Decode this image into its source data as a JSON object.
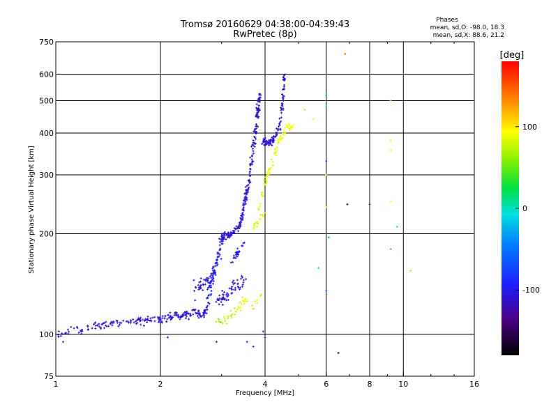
{
  "chart_data": {
    "type": "scatter",
    "title": "Tromsø 20160629 04:38:00-04:39:43",
    "subtitle": "RwPretec (8p)",
    "xlabel": "Frequency [MHz]",
    "ylabel": "Stationary phase Virtual Height [km]",
    "x_scale": "log",
    "y_scale": "log",
    "xlim": [
      1,
      16
    ],
    "ylim": [
      75,
      750
    ],
    "x_ticks": [
      1,
      2,
      4,
      6,
      8,
      10,
      16
    ],
    "x_tick_labels": [
      "1",
      "2",
      "4",
      "6",
      "8",
      "10",
      "16"
    ],
    "y_ticks": [
      75,
      100,
      200,
      300,
      400,
      500,
      600,
      750
    ],
    "y_tick_labels": [
      "75",
      "100",
      "200",
      "300",
      "400",
      "500",
      "600",
      "750"
    ],
    "grid": true,
    "stats": {
      "heading": "Phases",
      "line_o": "mean, sd,O: -98.0, 18.3",
      "line_x": "mean, sd,X: 88.6, 21.2"
    },
    "colorbar": {
      "label": "[deg]",
      "min": -180,
      "max": 180,
      "ticks": [
        100,
        0,
        -100
      ],
      "tick_labels": [
        "100",
        "0",
        "-100"
      ]
    },
    "trace_segments": [
      {
        "name": "base",
        "points": [
          [
            1.02,
            100,
            -110
          ],
          [
            1.1,
            104,
            -112
          ],
          [
            1.2,
            103,
            -108
          ],
          [
            1.3,
            106,
            -110
          ],
          [
            1.4,
            107,
            -112
          ],
          [
            1.5,
            108,
            -110
          ],
          [
            1.6,
            109,
            -114
          ],
          [
            1.7,
            109,
            -108
          ],
          [
            1.8,
            110,
            -110
          ],
          [
            1.9,
            111,
            -112
          ],
          [
            2.0,
            111,
            -106
          ],
          [
            2.1,
            112,
            -110
          ],
          [
            2.2,
            114,
            -108
          ],
          [
            2.3,
            114,
            -112
          ],
          [
            2.4,
            115,
            -110
          ],
          [
            2.5,
            116,
            -108
          ],
          [
            2.6,
            115,
            -110
          ],
          [
            2.7,
            116,
            -112
          ]
        ],
        "spread": 0.04,
        "count": 210
      },
      {
        "name": "o-rise",
        "points": [
          [
            2.7,
            116,
            -105
          ],
          [
            2.75,
            130,
            -100
          ],
          [
            2.8,
            145,
            -95
          ],
          [
            2.9,
            165,
            -100
          ],
          [
            3.0,
            190,
            -105
          ],
          [
            3.05,
            200,
            -110
          ]
        ],
        "spread": 0.06,
        "count": 95
      },
      {
        "name": "o-dip",
        "points": [
          [
            3.05,
            200,
            -110
          ],
          [
            3.15,
            198,
            -112
          ],
          [
            3.3,
            205,
            -110
          ],
          [
            3.4,
            215,
            -108
          ]
        ],
        "spread": 0.03,
        "count": 55
      },
      {
        "name": "o-cusp",
        "points": [
          [
            3.4,
            215,
            -108
          ],
          [
            3.5,
            245,
            -110
          ],
          [
            3.6,
            290,
            -112
          ],
          [
            3.7,
            360,
            -115
          ],
          [
            3.8,
            450,
            -115
          ],
          [
            3.87,
            520,
            -115
          ]
        ],
        "spread": 0.045,
        "count": 150
      },
      {
        "name": "x-mid",
        "points": [
          [
            3.95,
            380,
            -112
          ],
          [
            4.1,
            372,
            -110
          ],
          [
            4.25,
            385,
            -112
          ],
          [
            4.4,
            420,
            -115
          ],
          [
            4.5,
            500,
            -115
          ],
          [
            4.55,
            620,
            -112
          ]
        ],
        "spread": 0.035,
        "count": 110
      },
      {
        "name": "x-lower",
        "points": [
          [
            2.9,
            125,
            -110
          ],
          [
            3.1,
            132,
            -108
          ],
          [
            3.3,
            140,
            -110
          ],
          [
            3.5,
            145,
            -110
          ]
        ],
        "spread": 0.07,
        "count": 60
      },
      {
        "name": "o-lower",
        "points": [
          [
            2.5,
            135,
            -105
          ],
          [
            2.7,
            145,
            -110
          ],
          [
            2.9,
            150,
            -108
          ]
        ],
        "spread": 0.09,
        "count": 45
      },
      {
        "name": "high-cusp",
        "points": [
          [
            3.2,
            165,
            -100
          ],
          [
            3.35,
            175,
            -100
          ],
          [
            3.5,
            190,
            -108
          ]
        ],
        "spread": 0.05,
        "count": 25
      },
      {
        "name": "ext-trace",
        "points": [
          [
            3.8,
            230,
            80
          ],
          [
            4.0,
            285,
            85
          ],
          [
            4.2,
            330,
            80
          ],
          [
            4.4,
            380,
            88
          ],
          [
            4.6,
            410,
            90
          ],
          [
            4.8,
            420,
            95
          ]
        ],
        "spread": 0.04,
        "count": 70
      },
      {
        "name": "ext-mid",
        "points": [
          [
            3.7,
            210,
            88
          ],
          [
            3.85,
            220,
            85
          ],
          [
            4.0,
            230,
            90
          ]
        ],
        "spread": 0.03,
        "count": 18
      },
      {
        "name": "ext-low",
        "points": [
          [
            2.9,
            112,
            60
          ],
          [
            3.1,
            110,
            70
          ],
          [
            3.3,
            118,
            80
          ],
          [
            3.5,
            128,
            95
          ],
          [
            3.7,
            122,
            110
          ],
          [
            3.9,
            130,
            75
          ]
        ],
        "spread": 0.05,
        "count": 42
      }
    ],
    "isolated_points": [
      [
        6.8,
        690,
        145
      ],
      [
        9.2,
        500,
        130
      ],
      [
        9.2,
        380,
        100
      ],
      [
        9.2,
        355,
        90
      ],
      [
        9.2,
        250,
        95
      ],
      [
        9.2,
        180,
        140
      ],
      [
        9.6,
        210,
        -10
      ],
      [
        10.5,
        155,
        110
      ],
      [
        6.0,
        480,
        -20
      ],
      [
        6.0,
        300,
        75
      ],
      [
        6.0,
        240,
        80
      ],
      [
        6.1,
        195,
        -40
      ],
      [
        6.0,
        135,
        -60
      ],
      [
        5.7,
        158,
        -10
      ],
      [
        6.9,
        245,
        -170
      ],
      [
        8.0,
        245,
        -160
      ],
      [
        6.5,
        88,
        -170
      ],
      [
        4.0,
        98,
        -110
      ],
      [
        2.9,
        95,
        -120
      ],
      [
        3.7,
        92,
        -95
      ],
      [
        3.55,
        95,
        -95
      ],
      [
        3.95,
        102,
        -100
      ],
      [
        2.1,
        98,
        -100
      ],
      [
        1.05,
        95,
        -110
      ],
      [
        5.5,
        440,
        90
      ],
      [
        5.2,
        470,
        110
      ],
      [
        6.0,
        520,
        -30
      ],
      [
        6.0,
        330,
        -90
      ]
    ]
  }
}
